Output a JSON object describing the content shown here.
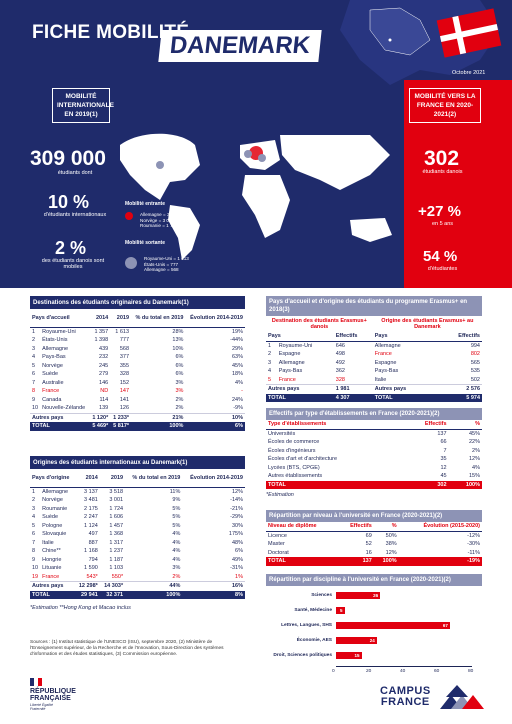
{
  "header": {
    "title_left": "FICHE MOBILITÉ",
    "title_country": "DANEMARK",
    "date": "Octobre 2021"
  },
  "left_panel": {
    "badge": "MOBILITÉ INTERNATIONALE EN 2019(1)",
    "n1": "309 000",
    "t1": "étudiants dont",
    "n2": "10 %",
    "t2": "d'étudiants internationaux",
    "n3": "2 %",
    "t3": "des étudiants danois sont mobiles"
  },
  "right_panel": {
    "badge": "MOBILITÉ VERS LA FRANCE EN 2020-2021(2)",
    "n1": "302",
    "t1": "étudiants danois",
    "n2": "+27 %",
    "t2": "en 5 ans",
    "n3": "54 %",
    "t3": "d'étudiantes"
  },
  "map": {
    "in_title": "Mobilité entrante",
    "in_lines": [
      "Allemagne = 3 518",
      "Norvège = 3 001",
      "Roumanie = 1 724"
    ],
    "out_title": "Mobilité sortante",
    "out_lines": [
      "Royaume-Uni = 1 613",
      "États-Unis = 777",
      "Allemagne = 568"
    ],
    "colors": {
      "land": "#ffffff",
      "incoming": "#e1000f",
      "outgoing": "#8d93b5",
      "map_bg": "#1f2b6b"
    }
  },
  "dest": {
    "title": "Destinations des étudiants originaires du Danemark(1)",
    "cols": [
      "Pays d'accueil",
      "2014",
      "2019",
      "% du total en 2019",
      "Évolution 2014-2019"
    ],
    "rows": [
      [
        "1",
        "Royaume-Uni",
        "1 357",
        "1 613",
        "28%",
        "19%"
      ],
      [
        "2",
        "États-Unis",
        "1 398",
        "777",
        "13%",
        "-44%"
      ],
      [
        "3",
        "Allemagne",
        "439",
        "568",
        "10%",
        "29%"
      ],
      [
        "4",
        "Pays-Bas",
        "232",
        "377",
        "6%",
        "63%"
      ],
      [
        "5",
        "Norvège",
        "245",
        "355",
        "6%",
        "45%"
      ],
      [
        "6",
        "Suède",
        "279",
        "328",
        "6%",
        "18%"
      ],
      [
        "7",
        "Australie",
        "146",
        "152",
        "3%",
        "4%"
      ],
      [
        "8",
        "France",
        "ND",
        "147",
        "3%",
        "-"
      ],
      [
        "9",
        "Canada",
        "114",
        "141",
        "2%",
        "24%"
      ],
      [
        "10",
        "Nouvelle-Zélande",
        "139",
        "126",
        "2%",
        "-9%"
      ]
    ],
    "other": [
      "Autres pays",
      "1 120*",
      "1 233*",
      "21%",
      "10%"
    ],
    "total": [
      "TOTAL",
      "5 469*",
      "5 817*",
      "100%",
      "6%"
    ]
  },
  "orig": {
    "title": "Origines des étudiants internationaux au Danemark(1)",
    "cols": [
      "Pays d'origine",
      "2014",
      "2019",
      "% du total en 2019",
      "Évolution 2014-2019"
    ],
    "rows": [
      [
        "1",
        "Allemagne",
        "3 137",
        "3 518",
        "11%",
        "12%"
      ],
      [
        "2",
        "Norvège",
        "3 481",
        "3 001",
        "9%",
        "-14%"
      ],
      [
        "3",
        "Roumanie",
        "2 175",
        "1 724",
        "5%",
        "-21%"
      ],
      [
        "4",
        "Suède",
        "2 247",
        "1 606",
        "5%",
        "-29%"
      ],
      [
        "5",
        "Pologne",
        "1 124",
        "1 457",
        "5%",
        "30%"
      ],
      [
        "6",
        "Slovaquie",
        "497",
        "1 368",
        "4%",
        "175%"
      ],
      [
        "7",
        "Italie",
        "887",
        "1 317",
        "4%",
        "48%"
      ],
      [
        "8",
        "Chine**",
        "1 168",
        "1 237",
        "4%",
        "6%"
      ],
      [
        "9",
        "Hongrie",
        "794",
        "1 187",
        "4%",
        "49%"
      ],
      [
        "10",
        "Lituanie",
        "1 590",
        "1 103",
        "3%",
        "-31%"
      ],
      [
        "19",
        "France",
        "543*",
        "550*",
        "2%",
        "1%"
      ]
    ],
    "other": [
      "Autres pays",
      "12 298*",
      "14 303*",
      "44%",
      "16%"
    ],
    "total": [
      "TOTAL",
      "29 941",
      "32 371",
      "100%",
      "8%"
    ],
    "note": "*Estimation   **Hong Kong et Macao inclus"
  },
  "erasmus": {
    "title": "Pays d'accueil et d'origine des étudiants du programme Erasmus+ en 2018(3)",
    "left_head": "Destination des étudiants Erasmus+ danois",
    "right_head": "Origine des étudiants Erasmus+ au Danemark",
    "cols": [
      "Pays",
      "Effectifs",
      "Pays",
      "Effectifs"
    ],
    "rows": [
      [
        "1",
        "Royaume-Uni",
        "646",
        "Allemagne",
        "994"
      ],
      [
        "2",
        "Espagne",
        "498",
        "France",
        "802"
      ],
      [
        "3",
        "Allemagne",
        "492",
        "Espagne",
        "565"
      ],
      [
        "4",
        "Pays-Bas",
        "362",
        "Pays-Bas",
        "535"
      ],
      [
        "5",
        "France",
        "328",
        "Italie",
        "502"
      ]
    ],
    "other": [
      "Autres pays",
      "1 981",
      "Autres pays",
      "2 576"
    ],
    "total": [
      "TOTAL",
      "4 307",
      "TOTAL",
      "5 974"
    ]
  },
  "etab": {
    "title": "Effectifs par type d'établissements en France (2020-2021)(2)",
    "cols": [
      "Type d'établissements",
      "Effectifs",
      "%"
    ],
    "rows": [
      [
        "Universités",
        "137",
        "45%"
      ],
      [
        "Écoles de commerce",
        "66",
        "22%"
      ],
      [
        "Écoles d'ingénieurs",
        "7",
        "2%"
      ],
      [
        "Écoles d'art et d'architecture",
        "35",
        "12%"
      ],
      [
        "Lycées (BTS, CPGE)",
        "12",
        "4%"
      ],
      [
        "Autres établissements",
        "45",
        "15%"
      ]
    ],
    "total": [
      "TOTAL",
      "302",
      "100%"
    ],
    "note": "*Estimation"
  },
  "niveau": {
    "title": "Répartition par niveau à l'université en France (2020-2021)(2)",
    "cols": [
      "Niveau de diplôme",
      "Effectifs",
      "%",
      "Évolution (2015-2020)"
    ],
    "rows": [
      [
        "Licence",
        "69",
        "50%",
        "-12%"
      ],
      [
        "Master",
        "52",
        "38%",
        "-30%"
      ],
      [
        "Doctorat",
        "16",
        "12%",
        "-11%"
      ]
    ],
    "total": [
      "TOTAL",
      "137",
      "100%",
      "-19%"
    ]
  },
  "discipline": {
    "title": "Répartition par discipline à l'université en France (2020-2021)(2)",
    "chart_data": {
      "type": "bar",
      "categories": [
        "Sciences",
        "Santé, Médecine",
        "Lettres, Langues, SHS",
        "Économie, AES",
        "Droit, Sciences politiques"
      ],
      "values": [
        26,
        5,
        67,
        24,
        15
      ],
      "xlim": [
        0,
        80
      ],
      "ticks": [
        "0",
        "20",
        "40",
        "60",
        "80"
      ],
      "color": "#e1000f"
    }
  },
  "sources": "Sources : (1) Institut statistique de l'UNESCO (ISU), septembre 2020, (2) Ministère de l'Enseignement supérieur, de la Recherche et de l'Innovation, Sous-Direction des systèmes d'information et des études statistiques, (3) Commission européenne.",
  "footer": {
    "rf1": "RÉPUBLIQUE",
    "rf2": "FRANÇAISE",
    "rf3": "Liberté Égalité Fraternité",
    "cf1": "CAMPUS",
    "cf2": "FRANCE"
  }
}
